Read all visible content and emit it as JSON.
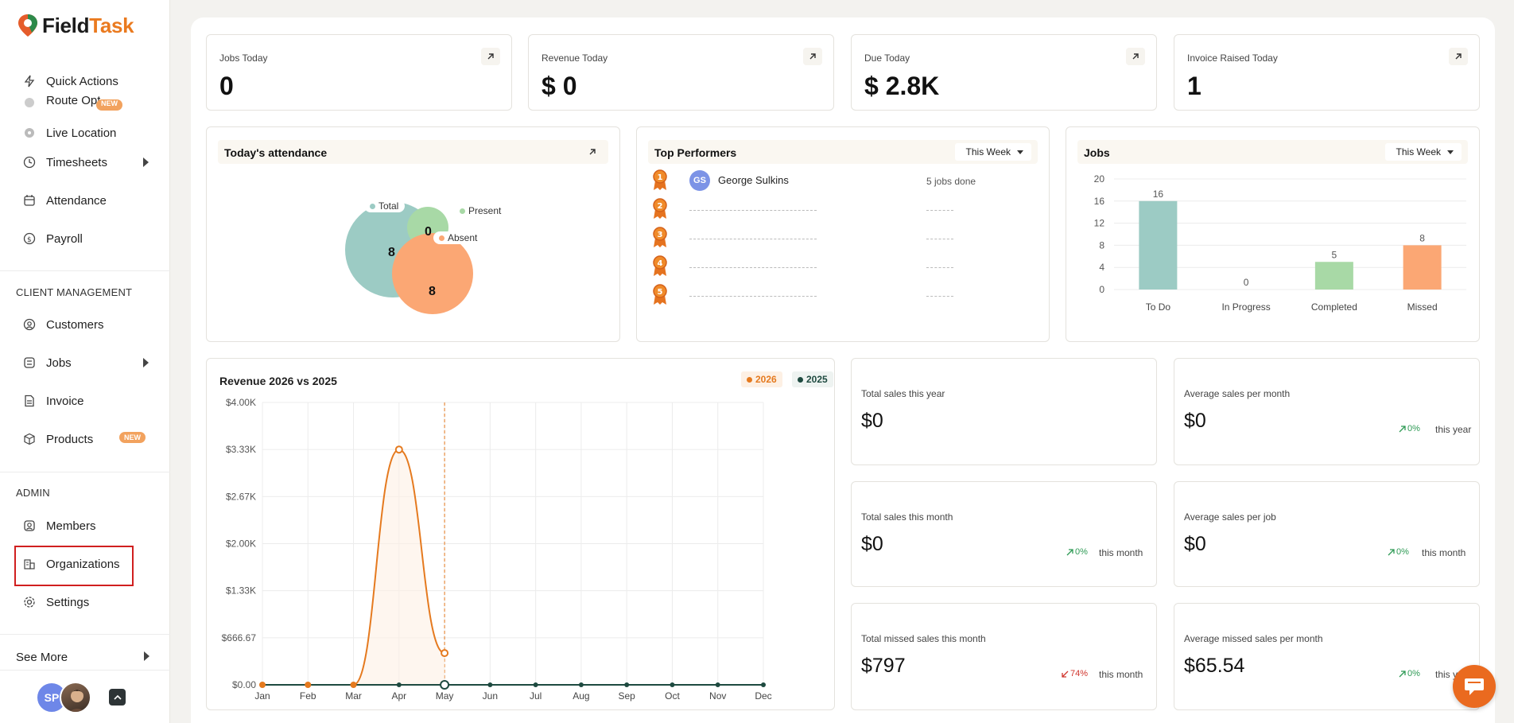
{
  "brand": {
    "name_main": "Field",
    "name_accent": "Task"
  },
  "sidebar": {
    "nav_top": [
      {
        "label": "Quick Actions",
        "icon": "bolt-icon"
      },
      {
        "label": "Route Opt",
        "icon": "route-icon",
        "badge": "NEW"
      },
      {
        "label": "Live Location",
        "icon": "location-icon"
      },
      {
        "label": "Timesheets",
        "icon": "clock-icon"
      },
      {
        "label": "Attendance",
        "icon": "calendar-icon"
      },
      {
        "label": "Payroll",
        "icon": "payroll-icon"
      }
    ],
    "client_section": "CLIENT MANAGEMENT",
    "nav_client": [
      {
        "label": "Customers",
        "icon": "user-circle-icon"
      },
      {
        "label": "Jobs",
        "icon": "list-icon"
      },
      {
        "label": "Invoice",
        "icon": "invoice-icon"
      },
      {
        "label": "Products",
        "icon": "box-icon",
        "badge": "NEW"
      }
    ],
    "admin_section": "ADMIN",
    "nav_admin": [
      {
        "label": "Members",
        "icon": "members-icon"
      },
      {
        "label": "Organizations",
        "icon": "building-icon"
      },
      {
        "label": "Settings",
        "icon": "gear-icon"
      }
    ],
    "see_more": "See More",
    "user_initials": "SP"
  },
  "kpis": [
    {
      "label": "Jobs Today",
      "value": "0"
    },
    {
      "label": "Revenue Today",
      "value": "$ 0"
    },
    {
      "label": "Due Today",
      "value": "$ 2.8K"
    },
    {
      "label": "Invoice Raised Today",
      "value": "1"
    }
  ],
  "attendance": {
    "title": "Today's attendance",
    "total_label": "Total",
    "total_value": "8",
    "present_label": "Present",
    "present_value": "0",
    "absent_label": "Absent",
    "absent_value": "8",
    "colors": {
      "total": "#9ccbc4",
      "present": "#a8d9a6",
      "absent": "#fba774"
    }
  },
  "top_performers": {
    "title": "Top Performers",
    "filter": "This Week",
    "rows": [
      {
        "rank": "1",
        "initials": "GS",
        "name": "George Sulkins",
        "jobs": "5 jobs done"
      },
      {
        "rank": "2"
      },
      {
        "rank": "3"
      },
      {
        "rank": "4"
      },
      {
        "rank": "5"
      }
    ]
  },
  "jobs_panel": {
    "title": "Jobs",
    "filter": "This Week"
  },
  "revenue_panel": {
    "title": "Revenue 2026 vs 2025",
    "legend_2026": "2026",
    "legend_2025": "2025"
  },
  "stats": [
    {
      "label": "Total sales this year",
      "value": "$0"
    },
    {
      "label": "Average sales per month",
      "value": "$0",
      "change": "0%",
      "period": "this year",
      "trend": "up"
    },
    {
      "label": "Total sales this month",
      "value": "$0",
      "change": "0%",
      "period": "this month",
      "trend": "up"
    },
    {
      "label": "Average sales per job",
      "value": "$0",
      "change": "0%",
      "period": "this month",
      "trend": "up"
    },
    {
      "label": "Total missed sales this month",
      "value": "$797",
      "change": "74%",
      "period": "this month",
      "trend": "down"
    },
    {
      "label": "Average missed sales per month",
      "value": "$65.54",
      "change": "0%",
      "period": "this year",
      "trend": "up"
    }
  ],
  "chart_data": [
    {
      "type": "bar",
      "title": "Jobs",
      "categories": [
        "To Do",
        "In Progress",
        "Completed",
        "Missed"
      ],
      "values": [
        16,
        0,
        5,
        8
      ],
      "bar_colors": [
        "#9ccbc4",
        "#bdbdbd",
        "#a8d9a6",
        "#fba774"
      ],
      "ylim": [
        0,
        20
      ],
      "yticks": [
        0,
        4,
        8,
        12,
        16,
        20
      ],
      "grid": true
    },
    {
      "type": "line",
      "title": "Revenue 2026 vs 2025",
      "categories": [
        "Jan",
        "Feb",
        "Mar",
        "Apr",
        "May",
        "Jun",
        "Jul",
        "Aug",
        "Sep",
        "Oct",
        "Nov",
        "Dec"
      ],
      "series": [
        {
          "name": "2026",
          "color": "#e57a1f",
          "values": [
            0,
            0,
            0,
            3333,
            450,
            null,
            null,
            null,
            null,
            null,
            null,
            null
          ]
        },
        {
          "name": "2025",
          "color": "#1e4a40",
          "values": [
            0,
            0,
            0,
            0,
            0,
            0,
            0,
            0,
            0,
            0,
            0,
            0
          ]
        }
      ],
      "ylim": [
        0,
        4000
      ],
      "yticks": [
        "$0.00",
        "$666.67",
        "$1.33K",
        "$2.00K",
        "$2.67K",
        "$3.33K",
        "$4.00K"
      ],
      "grid": true,
      "legend": "top-right"
    }
  ]
}
